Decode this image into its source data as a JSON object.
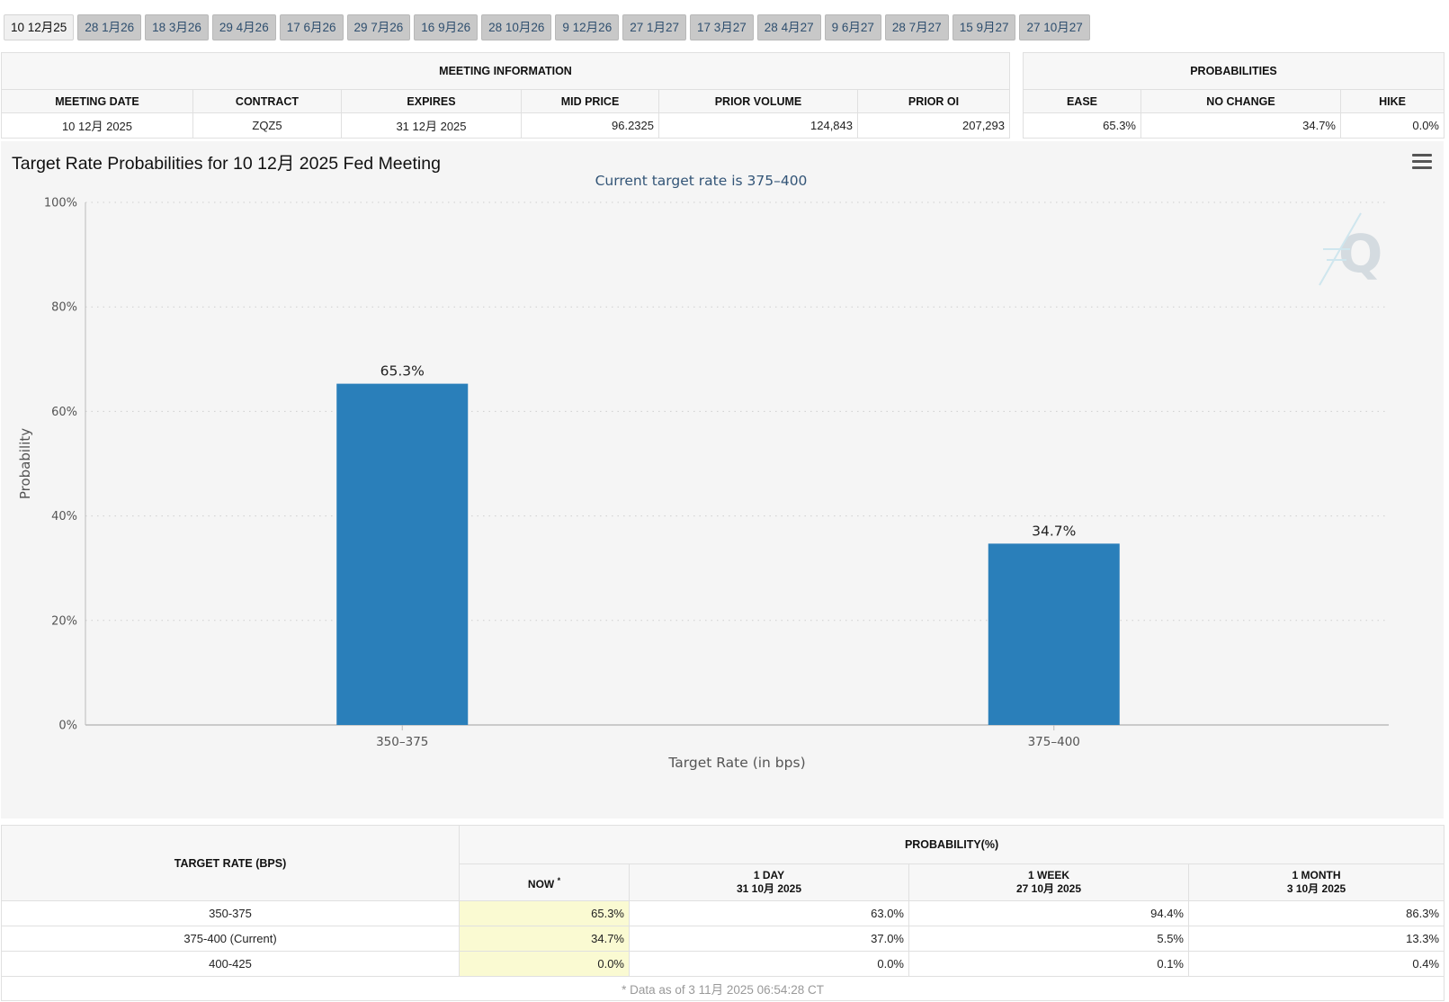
{
  "tabs": [
    "10 12月25",
    "28 1月26",
    "18 3月26",
    "29 4月26",
    "17 6月26",
    "29 7月26",
    "16 9月26",
    "28 10月26",
    "9 12月26",
    "27 1月27",
    "17 3月27",
    "28 4月27",
    "9 6月27",
    "28 7月27",
    "15 9月27",
    "27 10月27"
  ],
  "active_tab": 0,
  "meeting_info": {
    "heading": "MEETING INFORMATION",
    "columns": [
      "MEETING DATE",
      "CONTRACT",
      "EXPIRES",
      "MID PRICE",
      "PRIOR VOLUME",
      "PRIOR OI"
    ],
    "row": [
      "10 12月 2025",
      "ZQZ5",
      "31 12月 2025",
      "96.2325",
      "124,843",
      "207,293"
    ]
  },
  "probabilities": {
    "heading": "PROBABILITIES",
    "columns": [
      "EASE",
      "NO CHANGE",
      "HIKE"
    ],
    "row": [
      "65.3%",
      "34.7%",
      "0.0%"
    ]
  },
  "chart": {
    "title": "Target Rate Probabilities for 10 12月 2025 Fed Meeting"
  },
  "chart_data": {
    "type": "bar",
    "title": "Target Rate Probabilities for 10 12月 2025 Fed Meeting",
    "subtitle": "Current target rate is 375–400",
    "categories": [
      "350–375",
      "375–400"
    ],
    "values": [
      65.3,
      34.7
    ],
    "value_labels": [
      "65.3%",
      "34.7%"
    ],
    "xlabel": "Target Rate (in bps)",
    "ylabel": "Probability",
    "ylim": [
      0,
      100
    ],
    "yticks": [
      "0%",
      "20%",
      "40%",
      "60%",
      "80%",
      "100%"
    ],
    "grid": true,
    "bar_color": "#2a7fba"
  },
  "rate_table": {
    "col_target": "TARGET RATE (BPS)",
    "col_group": "PROBABILITY(%)",
    "col_now": "NOW",
    "col_now_mark": "*",
    "col_day": "1 DAY",
    "col_day_date": "31 10月 2025",
    "col_week": "1 WEEK",
    "col_week_date": "27 10月 2025",
    "col_month": "1 MONTH",
    "col_month_date": "3 10月 2025",
    "rows": [
      [
        "350-375",
        "65.3%",
        "63.0%",
        "94.4%",
        "86.3%"
      ],
      [
        "375-400 (Current)",
        "34.7%",
        "37.0%",
        "5.5%",
        "13.3%"
      ],
      [
        "400-425",
        "0.0%",
        "0.0%",
        "0.1%",
        "0.4%"
      ]
    ],
    "note": "* Data as of 3 11月 2025 06:54:28 CT"
  }
}
